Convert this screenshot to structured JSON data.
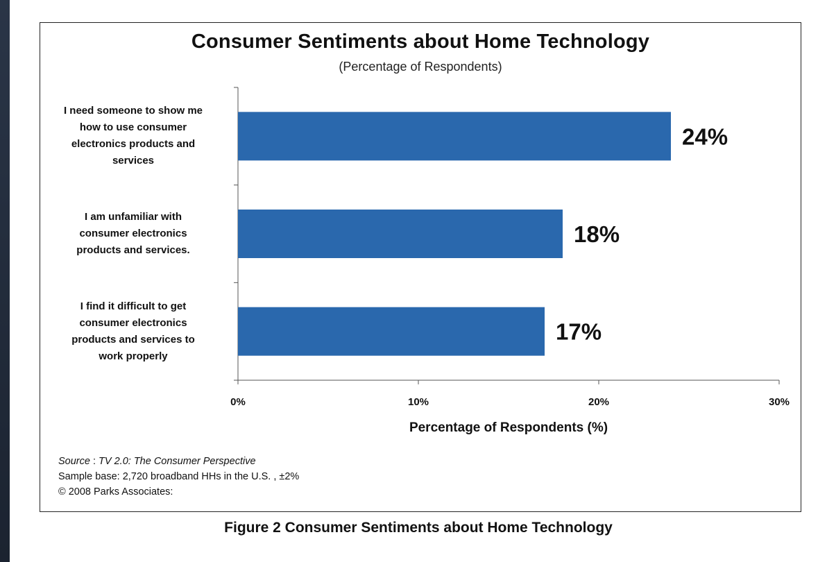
{
  "chart_data": {
    "type": "bar",
    "orientation": "horizontal",
    "title": "Consumer Sentiments about Home Technology",
    "subtitle": "(Percentage of Respondents)",
    "categories": [
      "I need someone to show me how to use consumer electronics products and services",
      "I am unfamiliar with consumer electronics products and services.",
      "I find it difficult to get consumer electronics products and services to work properly"
    ],
    "category_lines": [
      [
        "I need someone to show me",
        "how to use consumer",
        "electronics products and",
        "services"
      ],
      [
        "I am unfamiliar with",
        "consumer electronics",
        "products and services."
      ],
      [
        "I find it difficult to get",
        "consumer electronics",
        "products and services to",
        "work properly"
      ]
    ],
    "values": [
      24,
      18,
      17
    ],
    "value_labels": [
      "24%",
      "18%",
      "17%"
    ],
    "xlabel": "Percentage of Respondents (%)",
    "ylabel": "",
    "xlim": [
      0,
      30
    ],
    "xticks": [
      0,
      10,
      20,
      30
    ],
    "xtick_labels": [
      "0%",
      "10%",
      "20%",
      "30%"
    ],
    "grid": false,
    "legend": "none",
    "bar_color": "#2a68ad"
  },
  "source": {
    "label": "Source",
    "separator": " : ",
    "title": "TV 2.0: The Consumer Perspective",
    "sample": "Sample base: 2,720 broadband HHs in the U.S. , ±2%",
    "copyright": "© 2008 Parks Associates:"
  },
  "caption": "Figure 2 Consumer Sentiments about Home Technology"
}
